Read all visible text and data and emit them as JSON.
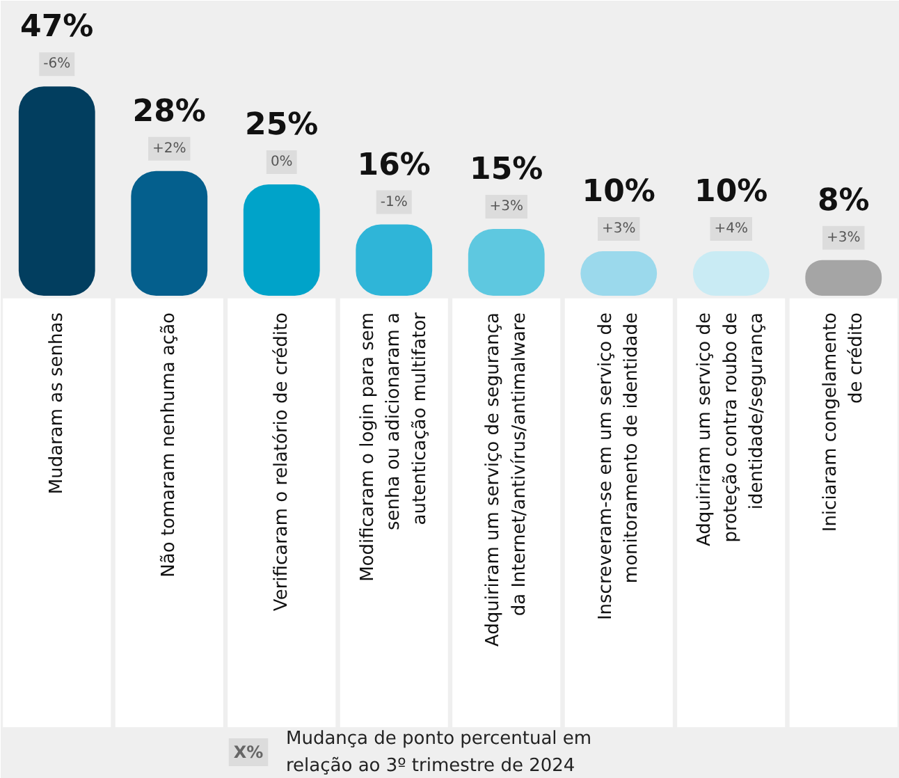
{
  "chart_data": {
    "type": "bar",
    "categories": [
      "Mudaram as senhas",
      "Não tomaram nenhuma ação",
      "Verificaram o relatório de crédito",
      "Modificaram o login para sem\nsenha ou adicionaram a\nautenticação multifator",
      "Adquiriram um serviço de segurança\nda Internet/antivírus/antimalware",
      "Inscreveram-se em um serviço de\nmonitoramento de identidade",
      "Adquiriram um serviço de\nproteção contra roubo de\nidentidade/segurança",
      "Iniciaram congelamento\nde crédito"
    ],
    "values": [
      47,
      28,
      25,
      16,
      15,
      10,
      10,
      8
    ],
    "colors": [
      "#023e5f",
      "#045f8d",
      "#00a3c9",
      "#2fb5d8",
      "#5ec8e0",
      "#9bd9ec",
      "#c9ebf4",
      "#a5a5a5"
    ],
    "value_labels": [
      "47%",
      "28%",
      "25%",
      "16%",
      "15%",
      "10%",
      "10%",
      "8%"
    ],
    "annotations": [
      {
        "text": "-6%",
        "x": "Mudaram as senhas",
        "y": 47
      },
      {
        "text": "+2%",
        "x": "Não tomaram nenhuma ação",
        "y": 28
      },
      {
        "text": "0%",
        "x": "Verificaram o relatório de crédito",
        "y": 25
      },
      {
        "text": "-1%",
        "x": "Modificaram o login para sem\nsenha ou adicionaram a\nautenticação multifator",
        "y": 16
      },
      {
        "text": "+3%",
        "x": "Adquiriram um serviço de segurança\nda Internet/antivírus/antimalware",
        "y": 15
      },
      {
        "text": "+3%",
        "x": "Inscreveram-se em um serviço de\nmonitoramento de identidade",
        "y": 10
      },
      {
        "text": "+4%",
        "x": "Adquiriram um serviço de\nproteção contra roubo de\nidentidade/segurança",
        "y": 10
      },
      {
        "text": "+3%",
        "x": "Iniciaram congelamento\nde crédito",
        "y": 8
      },
      "X%",
      "Mudança de ponto percentual em\nrelação ao 3º trimestre de 2024"
    ],
    "grid": false
  }
}
